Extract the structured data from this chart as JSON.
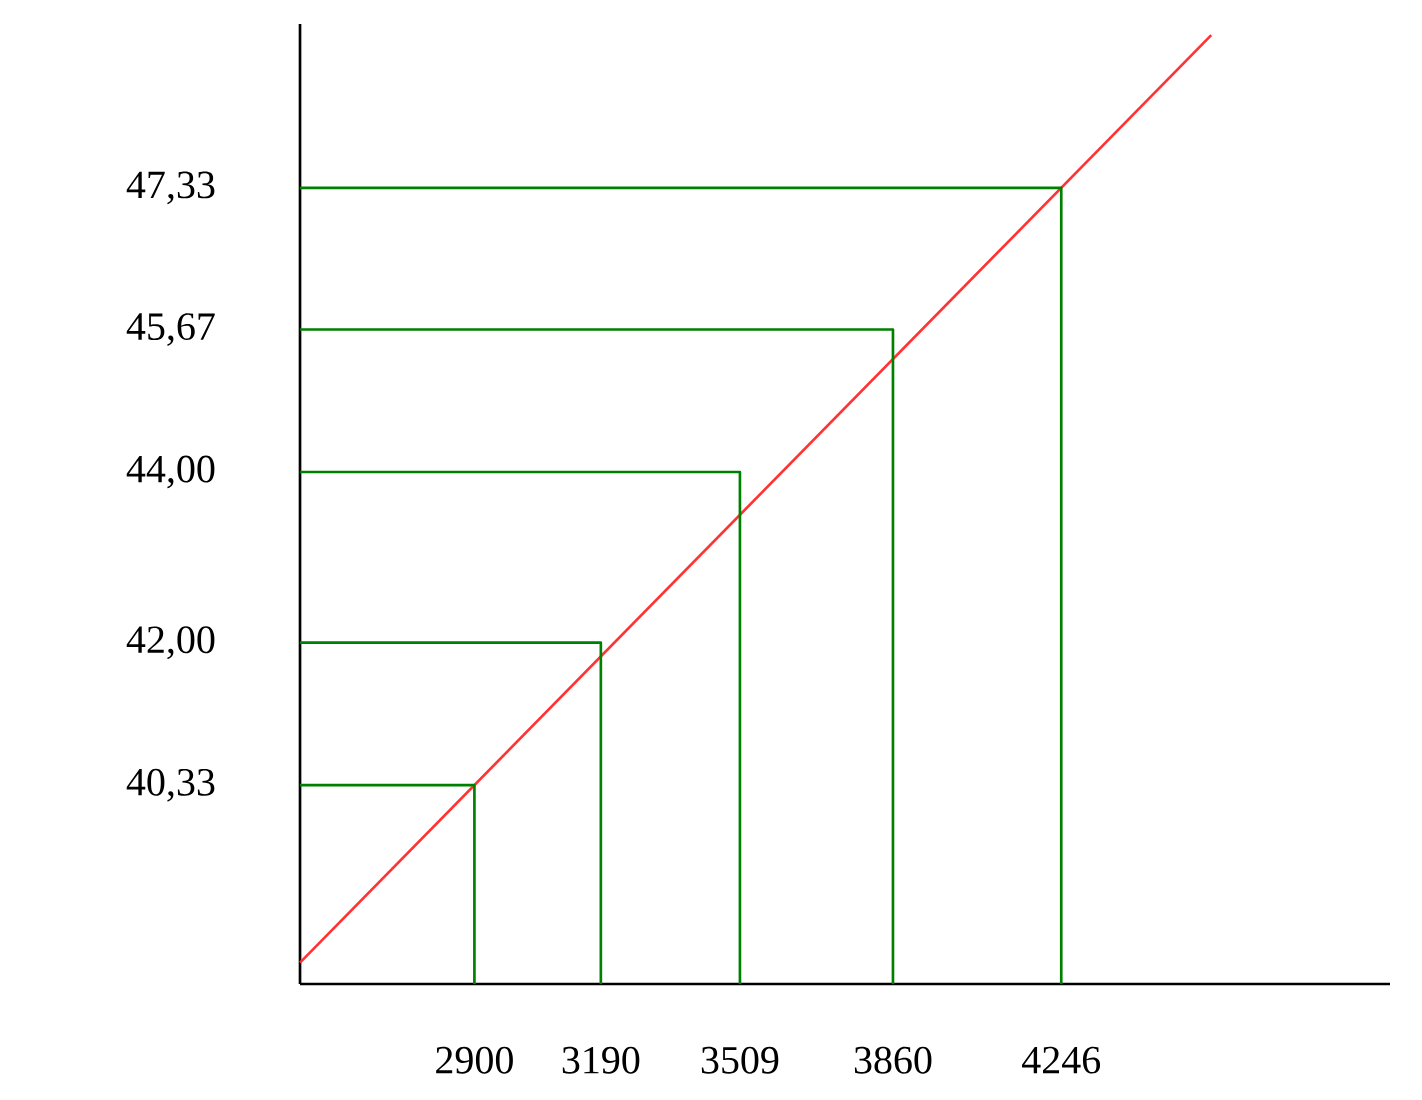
{
  "chart_data": {
    "type": "line",
    "marker": "none",
    "xlim": [
      2500,
      5000
    ],
    "ylim": [
      38,
      49.25
    ],
    "xticks": [
      2900,
      3190,
      3509,
      3860,
      4246
    ],
    "yticks": [
      {
        "value": 40.33,
        "label": "40,33"
      },
      {
        "value": 42.0,
        "label": "42,00"
      },
      {
        "value": 44.0,
        "label": "44,00"
      },
      {
        "value": 45.67,
        "label": "45,67"
      },
      {
        "value": 47.33,
        "label": "47,33"
      }
    ],
    "series": [
      {
        "color": "#ff3333",
        "x": [
          2500,
          4590
        ],
        "values": [
          38.25,
          49.12
        ]
      },
      {
        "color": "#008000",
        "x": [
          2500,
          2900,
          2900
        ],
        "values": [
          40.33,
          40.33,
          38
        ]
      },
      {
        "color": "#008000",
        "x": [
          2500,
          3190,
          3190
        ],
        "values": [
          42.0,
          42.0,
          38
        ]
      },
      {
        "color": "#008000",
        "x": [
          2500,
          3509,
          3509
        ],
        "values": [
          44.0,
          44.0,
          38
        ]
      },
      {
        "color": "#008000",
        "x": [
          2500,
          3860,
          3860
        ],
        "values": [
          45.67,
          45.67,
          38
        ]
      },
      {
        "color": "#008000",
        "x": [
          2500,
          4246,
          4246
        ],
        "values": [
          47.33,
          47.33,
          38
        ]
      }
    ]
  }
}
